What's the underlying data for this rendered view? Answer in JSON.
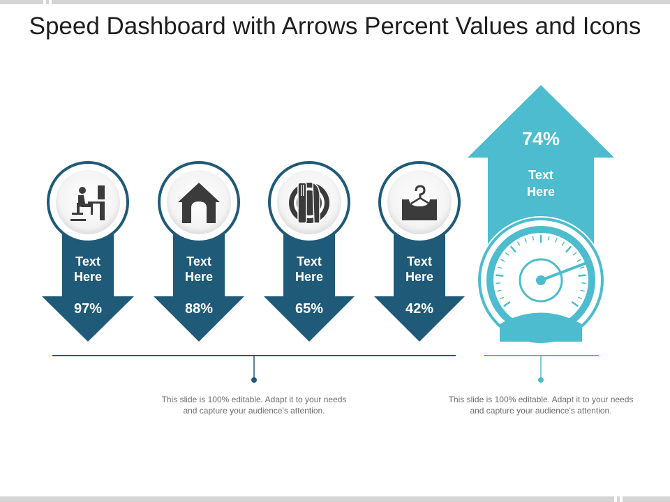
{
  "title": "Speed Dashboard with Arrows Percent Values and Icons",
  "colors": {
    "dark_teal": "#1f5a78",
    "light_teal": "#4cbcce",
    "text_gray": "#6d6d6d",
    "icon_gray": "#3b3b3b"
  },
  "arrows": [
    {
      "icon": "workstation-icon",
      "label_line1": "Text",
      "label_line2": "Here",
      "value": "97%"
    },
    {
      "icon": "home-icon",
      "label_line1": "Text",
      "label_line2": "Here",
      "value": "88%"
    },
    {
      "icon": "dining-icon",
      "label_line1": "Text",
      "label_line2": "Here",
      "value": "65%"
    },
    {
      "icon": "hanger-box-icon",
      "label_line1": "Text",
      "label_line2": "Here",
      "value": "42%"
    }
  ],
  "featured": {
    "icon": "speedometer-icon",
    "value": "74%",
    "label_line1": "Text",
    "label_line2": "Here"
  },
  "descriptions": [
    {
      "line1": "This slide is 100% editable. Adapt it to your needs",
      "line2": "and capture your audience's attention."
    },
    {
      "line1": "This slide is 100% editable. Adapt it to your needs",
      "line2": "and capture your audience's attention."
    }
  ]
}
